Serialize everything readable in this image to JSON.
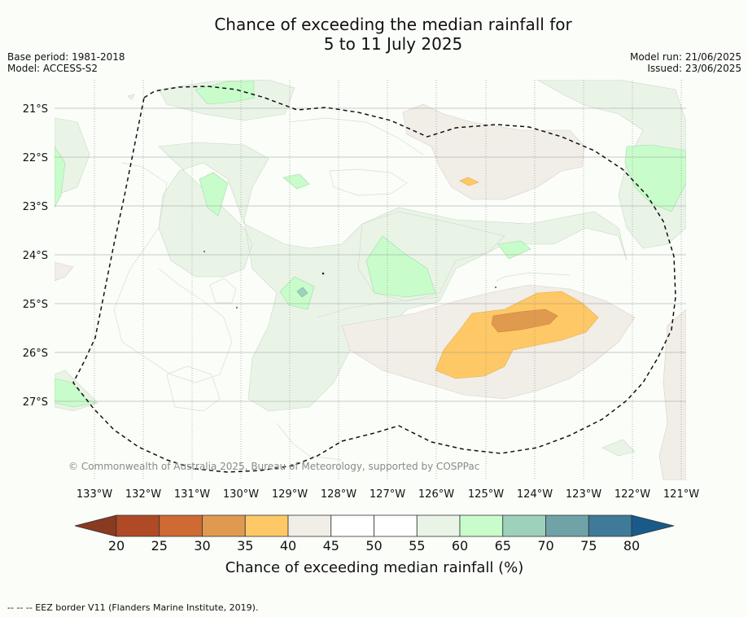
{
  "title_line1": "Chance of exceeding the median rainfall for",
  "title_line2": "5 to 11 July 2025",
  "meta_left": [
    "Base period: 1981-2018",
    "Model: ACCESS-S2"
  ],
  "meta_right": [
    "Model run: 21/06/2025",
    "Issued: 23/06/2025"
  ],
  "lat_labels": [
    "21°S",
    "22°S",
    "23°S",
    "24°S",
    "25°S",
    "26°S",
    "27°S"
  ],
  "lon_labels": [
    "133°W",
    "132°W",
    "131°W",
    "130°W",
    "129°W",
    "128°W",
    "127°W",
    "126°W",
    "125°W",
    "124°W",
    "123°W",
    "122°W",
    "121°W"
  ],
  "copyright": "© Commonwealth of Australia 2025, Bureau of Meteorology, supported by COSPPac",
  "colorbar": {
    "ticks": [
      "20",
      "25",
      "30",
      "35",
      "40",
      "45",
      "50",
      "55",
      "60",
      "65",
      "70",
      "75",
      "80"
    ],
    "colors": [
      "#8a3a1f",
      "#b04a26",
      "#cf6a34",
      "#e09a50",
      "#fec866",
      "#f1ede7",
      "#ffffff",
      "#ffffff",
      "#e9f4e7",
      "#c9fccb",
      "#9dd1bb",
      "#6fa3a8",
      "#3f7a99",
      "#195a8a"
    ],
    "label": "Chance of exceeding median rainfall (%)"
  },
  "footer": "--  --  -- EEZ border V11 (Flanders Marine Institute, 2019)."
}
